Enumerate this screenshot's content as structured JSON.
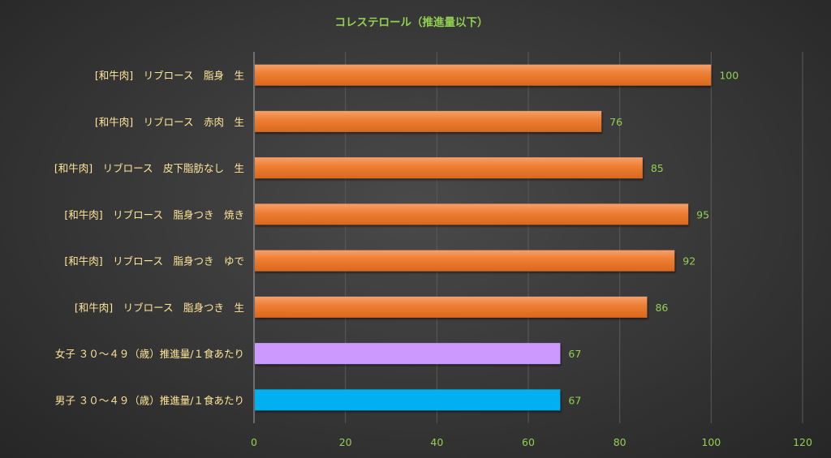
{
  "chart_data": {
    "type": "bar",
    "orientation": "horizontal",
    "title": "コレステロール（推進量以下）",
    "xlabel": "",
    "ylabel": "",
    "xlim": [
      0,
      120
    ],
    "x_ticks": [
      0,
      20,
      40,
      60,
      80,
      100,
      120
    ],
    "grid": true,
    "legend": "none",
    "categories": [
      "[和牛肉]　リブロース　脂身　生",
      "[和牛肉]　リブロース　赤肉　生",
      "[和牛肉]　リブロース　皮下脂肪なし　生",
      "[和牛肉]　リブロース　脂身つき　焼き",
      "[和牛肉]　リブロース　脂身つき　ゆで",
      "[和牛肉]　リブロース　脂身つき　生",
      "女子 ３０～４９（歳）推進量/１食あたり",
      "男子 ３０～４９（歳）推進量/１食あたり"
    ],
    "values": [
      100,
      76,
      85,
      95,
      92,
      86,
      67,
      67
    ],
    "bar_colors": [
      "#ed7d31",
      "#ed7d31",
      "#ed7d31",
      "#ed7d31",
      "#ed7d31",
      "#ed7d31",
      "#cc99ff",
      "#00b0f0"
    ]
  }
}
